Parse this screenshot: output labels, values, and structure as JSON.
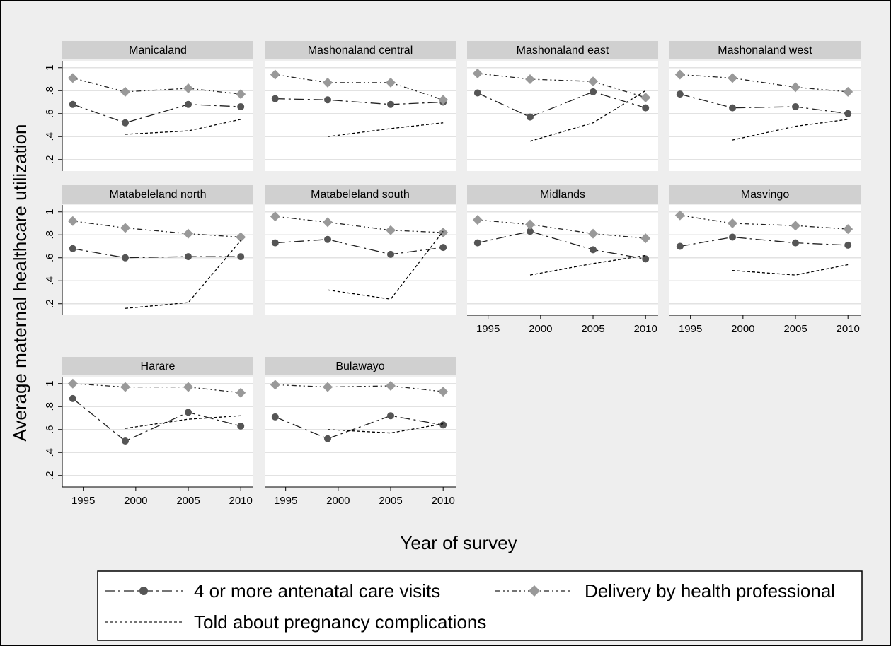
{
  "chart_data": {
    "type": "line",
    "ylabel": "Average maternal healthcare utilization",
    "xlabel": "Year of survey",
    "panels": [
      "Manicaland",
      "Mashonaland central",
      "Mashonaland east",
      "Mashonaland west",
      "Matabeleland north",
      "Matabeleland south",
      "Midlands",
      "Masvingo",
      "Harare",
      "Bulawayo"
    ],
    "x": [
      1994,
      1999,
      2005,
      2010
    ],
    "xlim": [
      1993,
      2011.2
    ],
    "xticks": [
      1995,
      2000,
      2005,
      2010
    ],
    "ylim": [
      0.1,
      1.06
    ],
    "yticks": [
      {
        "value": 0.2,
        "label": ".2"
      },
      {
        "value": 0.4,
        "label": ".4"
      },
      {
        "value": 0.6,
        "label": ".6"
      },
      {
        "value": 0.8,
        "label": ".8"
      },
      1
    ],
    "grid": true,
    "series": [
      {
        "name": "4 or more antenatal care visits",
        "color": "#555555",
        "values": [
          [
            0.68,
            0.52,
            0.68,
            0.66
          ],
          [
            0.73,
            0.72,
            0.68,
            0.7
          ],
          [
            0.78,
            0.57,
            0.79,
            0.65
          ],
          [
            0.77,
            0.65,
            0.66,
            0.6
          ],
          [
            0.68,
            0.6,
            0.61,
            0.61
          ],
          [
            0.73,
            0.76,
            0.63,
            0.69
          ],
          [
            0.73,
            0.83,
            0.67,
            0.59
          ],
          [
            0.7,
            0.78,
            0.73,
            0.71
          ],
          [
            0.87,
            0.5,
            0.75,
            0.63
          ],
          [
            0.71,
            0.52,
            0.72,
            0.64
          ]
        ]
      },
      {
        "name": "Delivery by health professional",
        "color": "#999999",
        "values": [
          [
            0.91,
            0.79,
            0.82,
            0.77
          ],
          [
            0.94,
            0.87,
            0.87,
            0.72
          ],
          [
            0.95,
            0.9,
            0.88,
            0.74
          ],
          [
            0.94,
            0.91,
            0.83,
            0.79
          ],
          [
            0.92,
            0.86,
            0.81,
            0.78
          ],
          [
            0.96,
            0.91,
            0.84,
            0.82
          ],
          [
            0.93,
            0.89,
            0.81,
            0.77
          ],
          [
            0.97,
            0.9,
            0.88,
            0.85
          ],
          [
            1.0,
            0.97,
            0.97,
            0.92
          ],
          [
            0.99,
            0.97,
            0.98,
            0.93
          ]
        ]
      },
      {
        "name": "Told about pregnancy complications",
        "color": "#000000",
        "values": [
          [
            null,
            0.42,
            0.45,
            0.55
          ],
          [
            null,
            0.4,
            0.47,
            0.52
          ],
          [
            null,
            0.36,
            0.52,
            0.8
          ],
          [
            null,
            0.37,
            0.49,
            0.55
          ],
          [
            null,
            0.16,
            0.21,
            0.75
          ],
          [
            null,
            0.32,
            0.24,
            0.83
          ],
          [
            null,
            0.45,
            0.55,
            0.62
          ],
          [
            null,
            0.49,
            0.45,
            0.54
          ],
          [
            null,
            0.61,
            0.69,
            0.72
          ],
          [
            null,
            0.6,
            0.57,
            0.65
          ]
        ]
      }
    ]
  }
}
